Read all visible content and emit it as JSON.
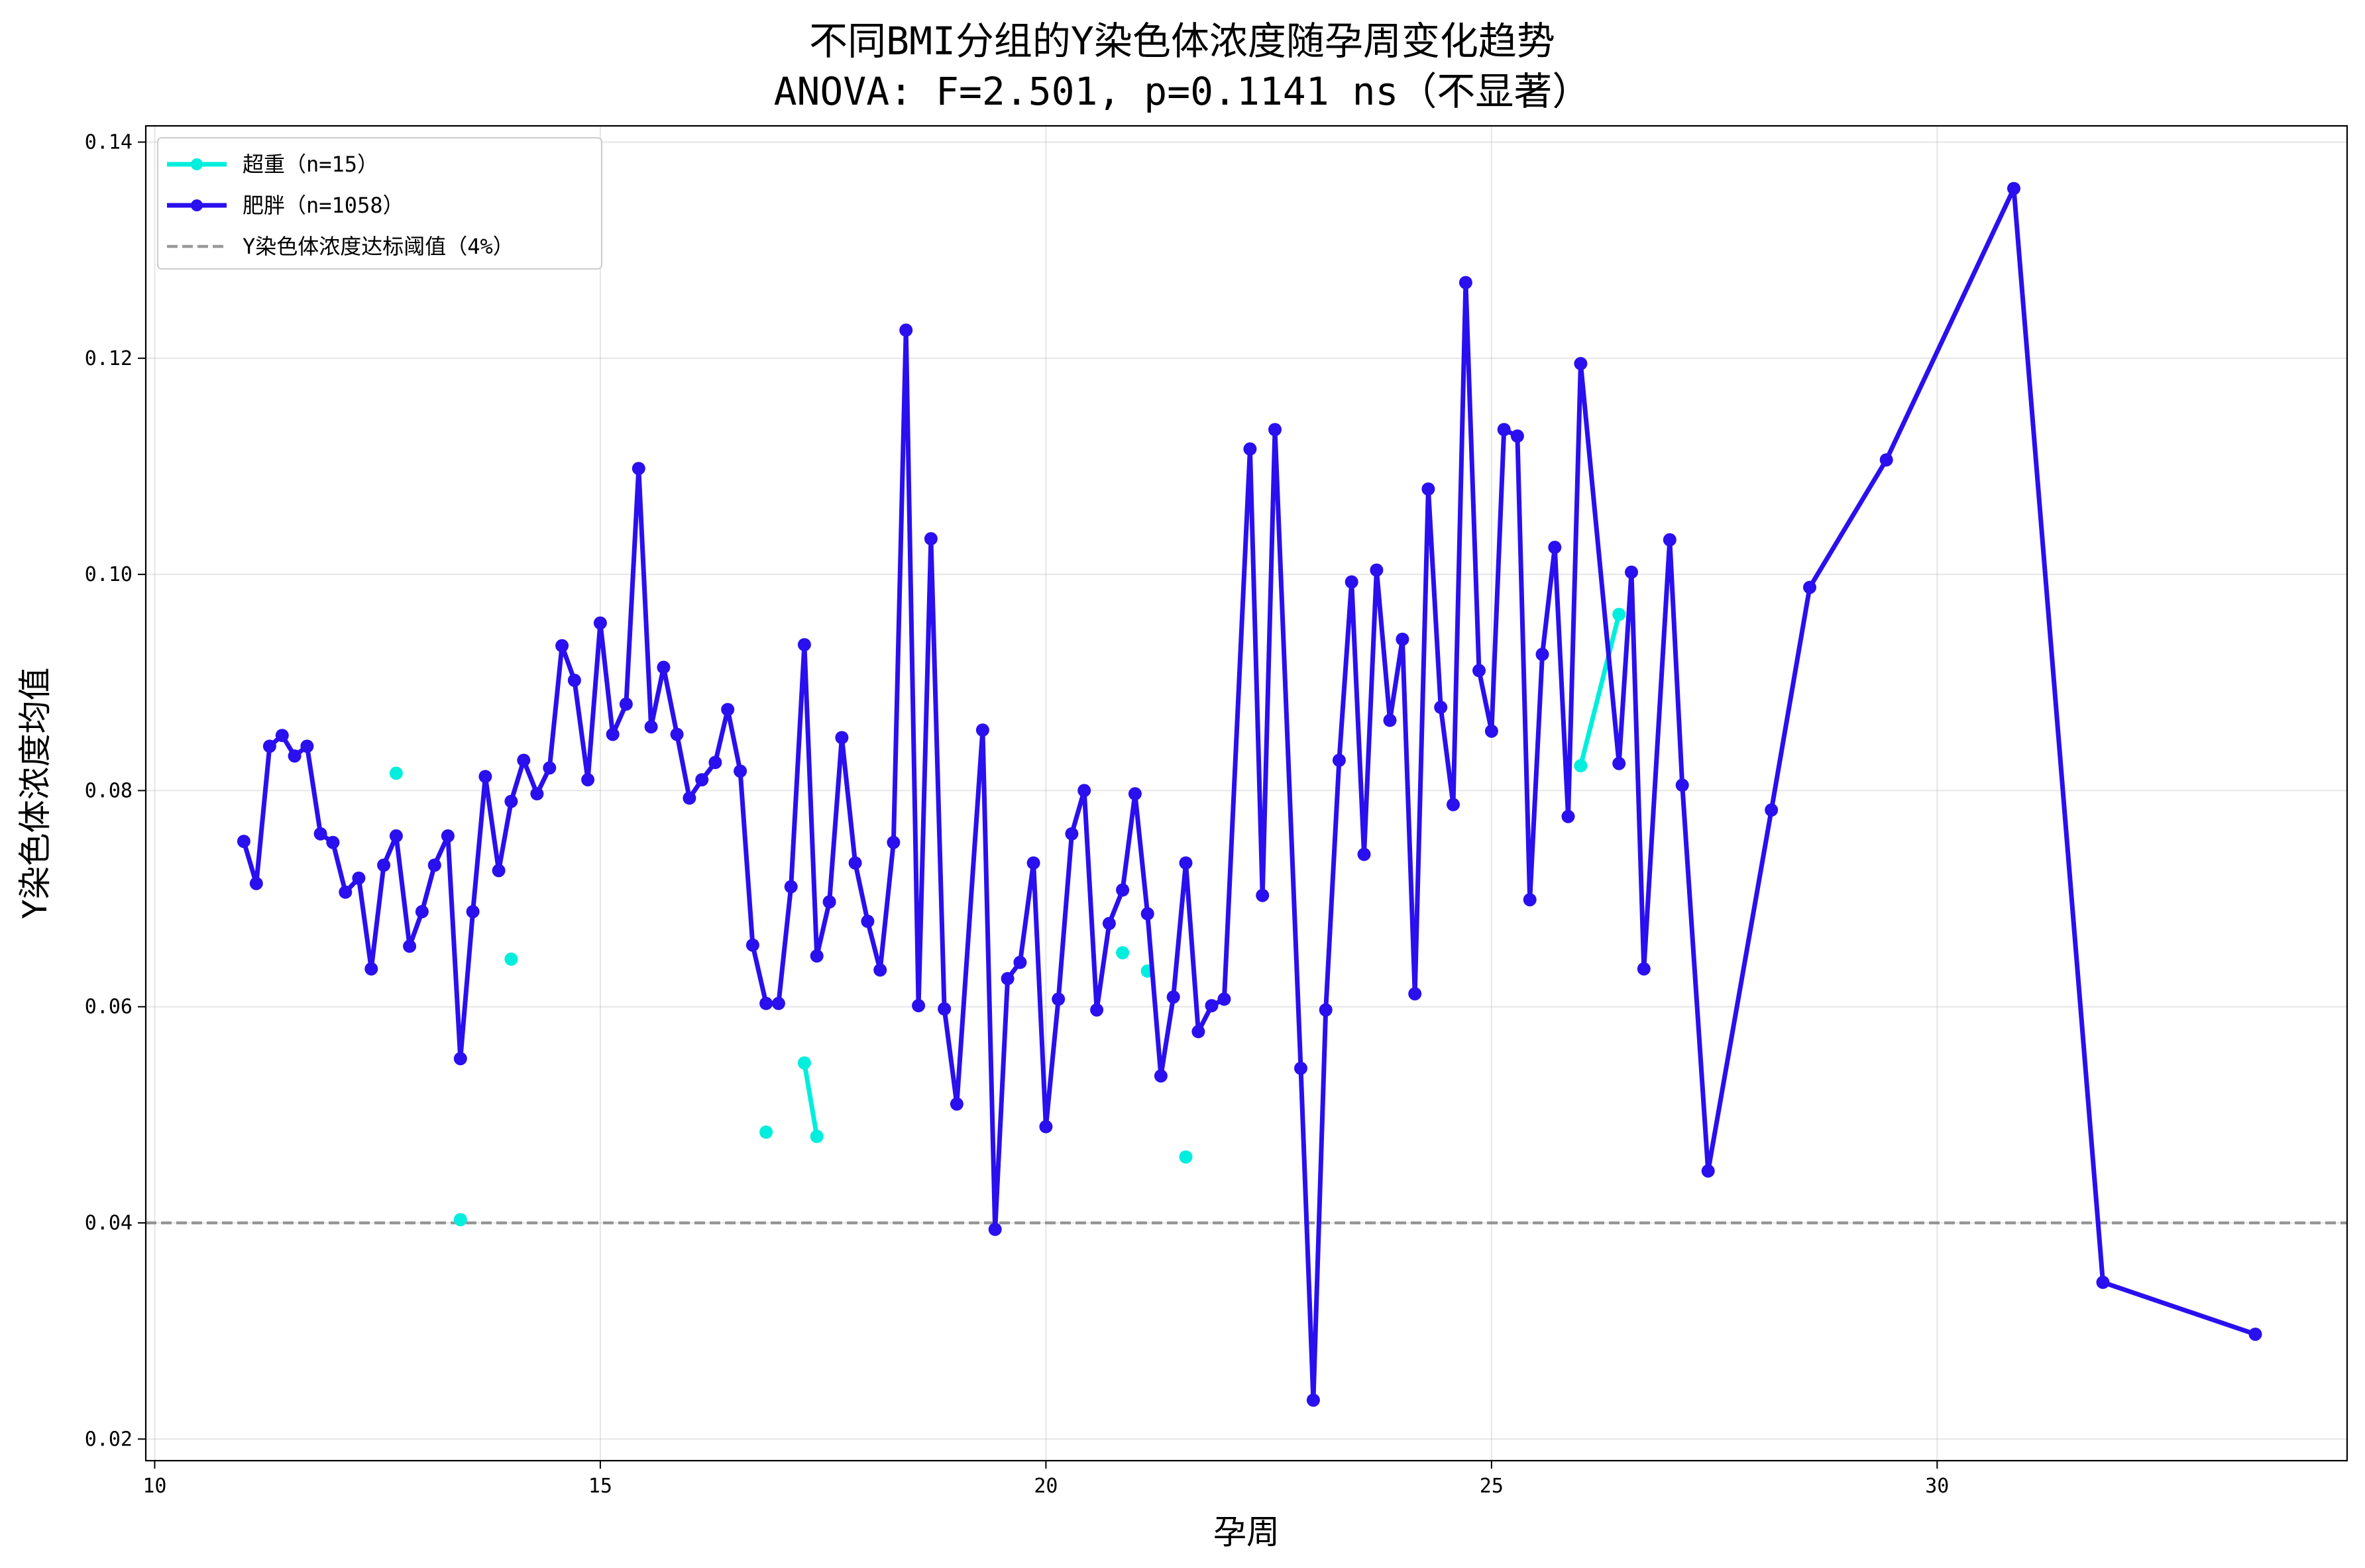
{
  "chart_data": {
    "type": "line",
    "title": "不同BMI分组的Y染色体浓度随孕周变化趋势",
    "subtitle": "ANOVA: F=2.501, p=0.1141 ns（不显著）",
    "xlabel": "孕周",
    "ylabel": "Y染色体浓度均值",
    "xlim": [
      9.9,
      34.6
    ],
    "ylim": [
      0.018,
      0.1415
    ],
    "xticks": [
      10,
      15,
      20,
      25,
      30
    ],
    "yticks": [
      0.02,
      0.04,
      0.06,
      0.08,
      0.1,
      0.12,
      0.14
    ],
    "xtick_labels": [
      "10",
      "15",
      "20",
      "25",
      "30"
    ],
    "ytick_labels": [
      "0.02",
      "0.04",
      "0.06",
      "0.08",
      "0.10",
      "0.12",
      "0.14"
    ],
    "grid": true,
    "legend_position": "upper-left",
    "threshold": {
      "name": "Y染色体浓度达标阈值（4%）",
      "value": 0.04,
      "color": "#808080",
      "style": "dashed"
    },
    "series": [
      {
        "name": "超重（n=15）",
        "color": "#00eedd",
        "segments": [
          [
            [
              12.71,
              0.0816
            ]
          ],
          [
            [
              13.43,
              0.0403
            ]
          ],
          [
            [
              14.0,
              0.0644
            ]
          ],
          [
            [
              16.86,
              0.0484
            ]
          ],
          [
            [
              17.29,
              0.0548
            ],
            [
              17.43,
              0.048
            ]
          ],
          [
            [
              20.86,
              0.065
            ]
          ],
          [
            [
              21.14,
              0.0633
            ]
          ],
          [
            [
              21.57,
              0.0461
            ]
          ],
          [
            [
              26.0,
              0.0823
            ],
            [
              26.43,
              0.0963
            ]
          ]
        ]
      },
      {
        "name": "肥胖（n=1058）",
        "color": "#2a0fef",
        "points": [
          [
            11.0,
            0.0753
          ],
          [
            11.14,
            0.0714
          ],
          [
            11.29,
            0.0841
          ],
          [
            11.43,
            0.0851
          ],
          [
            11.57,
            0.0832
          ],
          [
            11.71,
            0.0841
          ],
          [
            11.86,
            0.076
          ],
          [
            12.0,
            0.0752
          ],
          [
            12.14,
            0.0706
          ],
          [
            12.29,
            0.0719
          ],
          [
            12.43,
            0.0635
          ],
          [
            12.57,
            0.0731
          ],
          [
            12.71,
            0.0758
          ],
          [
            12.86,
            0.0656
          ],
          [
            13.0,
            0.0688
          ],
          [
            13.14,
            0.0731
          ],
          [
            13.29,
            0.0758
          ],
          [
            13.43,
            0.0552
          ],
          [
            13.57,
            0.0688
          ],
          [
            13.71,
            0.0813
          ],
          [
            13.86,
            0.0726
          ],
          [
            14.0,
            0.079
          ],
          [
            14.14,
            0.0828
          ],
          [
            14.29,
            0.0797
          ],
          [
            14.43,
            0.0821
          ],
          [
            14.57,
            0.0934
          ],
          [
            14.71,
            0.0902
          ],
          [
            14.86,
            0.081
          ],
          [
            15.0,
            0.0955
          ],
          [
            15.14,
            0.0852
          ],
          [
            15.29,
            0.088
          ],
          [
            15.43,
            0.1098
          ],
          [
            15.57,
            0.0859
          ],
          [
            15.71,
            0.0914
          ],
          [
            15.86,
            0.0852
          ],
          [
            16.0,
            0.0793
          ],
          [
            16.14,
            0.081
          ],
          [
            16.29,
            0.0826
          ],
          [
            16.43,
            0.0875
          ],
          [
            16.57,
            0.0818
          ],
          [
            16.71,
            0.0657
          ],
          [
            16.86,
            0.0603
          ],
          [
            17.0,
            0.0603
          ],
          [
            17.14,
            0.0711
          ],
          [
            17.29,
            0.0935
          ],
          [
            17.43,
            0.0647
          ],
          [
            17.57,
            0.0697
          ],
          [
            17.71,
            0.0849
          ],
          [
            17.86,
            0.0733
          ],
          [
            18.0,
            0.0679
          ],
          [
            18.14,
            0.0634
          ],
          [
            18.29,
            0.0752
          ],
          [
            18.43,
            0.1226
          ],
          [
            18.57,
            0.0601
          ],
          [
            18.71,
            0.1033
          ],
          [
            18.86,
            0.0598
          ],
          [
            19.0,
            0.051
          ],
          [
            19.29,
            0.0856
          ],
          [
            19.43,
            0.0394
          ],
          [
            19.57,
            0.0626
          ],
          [
            19.71,
            0.0641
          ],
          [
            19.86,
            0.0733
          ],
          [
            20.0,
            0.0489
          ],
          [
            20.14,
            0.0607
          ],
          [
            20.29,
            0.076
          ],
          [
            20.43,
            0.08
          ],
          [
            20.57,
            0.0597
          ],
          [
            20.71,
            0.0677
          ],
          [
            20.86,
            0.0708
          ],
          [
            21.0,
            0.0797
          ],
          [
            21.14,
            0.0686
          ],
          [
            21.29,
            0.0536
          ],
          [
            21.43,
            0.0609
          ],
          [
            21.57,
            0.0733
          ],
          [
            21.71,
            0.0577
          ],
          [
            21.86,
            0.0601
          ],
          [
            22.0,
            0.0607
          ],
          [
            22.29,
            0.1116
          ],
          [
            22.43,
            0.0703
          ],
          [
            22.57,
            0.1134
          ],
          [
            22.86,
            0.0543
          ],
          [
            23.0,
            0.0236
          ],
          [
            23.14,
            0.0597
          ],
          [
            23.29,
            0.0828
          ],
          [
            23.43,
            0.0993
          ],
          [
            23.57,
            0.0741
          ],
          [
            23.71,
            0.1004
          ],
          [
            23.86,
            0.0865
          ],
          [
            24.0,
            0.094
          ],
          [
            24.14,
            0.0612
          ],
          [
            24.29,
            0.1079
          ],
          [
            24.43,
            0.0877
          ],
          [
            24.57,
            0.0787
          ],
          [
            24.71,
            0.127
          ],
          [
            24.86,
            0.0911
          ],
          [
            25.0,
            0.0855
          ],
          [
            25.14,
            0.1134
          ],
          [
            25.29,
            0.1128
          ],
          [
            25.43,
            0.0699
          ],
          [
            25.57,
            0.0926
          ],
          [
            25.71,
            0.1025
          ],
          [
            25.86,
            0.0776
          ],
          [
            26.0,
            0.1195
          ],
          [
            26.43,
            0.0825
          ],
          [
            26.57,
            0.1002
          ],
          [
            26.71,
            0.0635
          ],
          [
            27.0,
            0.1032
          ],
          [
            27.14,
            0.0805
          ],
          [
            27.43,
            0.0448
          ],
          [
            28.14,
            0.0782
          ],
          [
            28.57,
            0.0988
          ],
          [
            29.43,
            0.1106
          ],
          [
            30.86,
            0.1357
          ],
          [
            31.86,
            0.0345
          ],
          [
            33.57,
            0.0297
          ]
        ]
      }
    ]
  }
}
